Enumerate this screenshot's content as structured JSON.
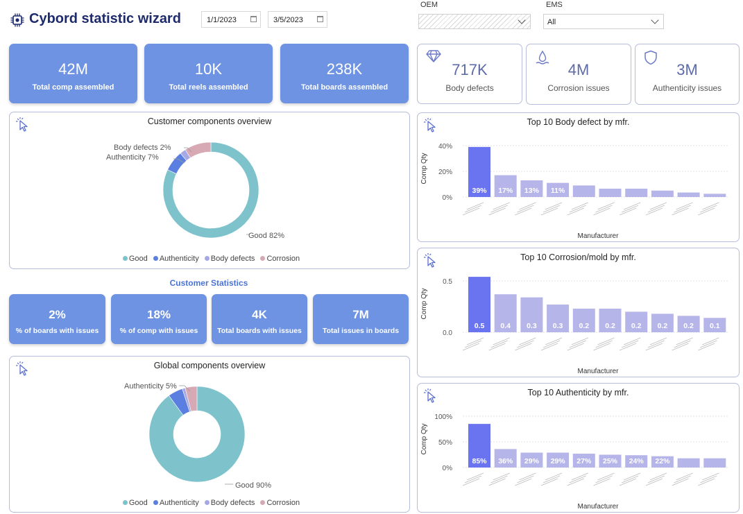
{
  "header": {
    "title": "Cybord statistic wizard",
    "icon": "chip-icon",
    "date_start": "1/1/2023",
    "date_end": "3/5/2023",
    "oem_label": "OEM",
    "oem_value": "",
    "ems_label": "EMS",
    "ems_value": "All"
  },
  "kpis_top": [
    {
      "value": "42M",
      "label": "Total comp assembled"
    },
    {
      "value": "10K",
      "label": "Total reels assembled"
    },
    {
      "value": "238K",
      "label": "Total boards assembled"
    }
  ],
  "kpis_issues": [
    {
      "value": "717K",
      "label": "Body defects",
      "icon": "diamond-icon"
    },
    {
      "value": "4M",
      "label": "Corrosion issues",
      "icon": "water-drop-icon"
    },
    {
      "value": "3M",
      "label": "Authenticity issues",
      "icon": "shield-icon"
    }
  ],
  "customer_overview": {
    "title": "Customer components overview",
    "labels": {
      "body": "Body defects 2%",
      "auth": "Authenticity 7%",
      "good": "Good 82%"
    }
  },
  "global_overview": {
    "title": "Global components overview",
    "labels": {
      "auth": "Authenticity 5%",
      "good": "Good 90%"
    }
  },
  "legend": [
    "Good",
    "Authenticity",
    "Body defects",
    "Corrosion"
  ],
  "colors": {
    "good": "#7ec3cc",
    "authenticity": "#5b7fe0",
    "body_defects": "#a6a8e6",
    "corrosion": "#d7a9b5",
    "bar_top": "#6b74f0",
    "bar_rest": "#b6b5ea",
    "tile": "#6e93e3"
  },
  "customer_statistics": {
    "title": "Customer Statistics",
    "tiles": [
      {
        "value": "2%",
        "label": "% of boards with issues"
      },
      {
        "value": "18%",
        "label": "% of comp with issues"
      },
      {
        "value": "4K",
        "label": "Total boards with issues"
      },
      {
        "value": "7M",
        "label": "Total issues in boards"
      }
    ]
  },
  "chart_data": [
    {
      "type": "pie",
      "title": "Customer components overview",
      "categories": [
        "Good",
        "Authenticity",
        "Body defects",
        "Corrosion"
      ],
      "values": [
        82,
        7,
        2,
        9
      ],
      "unit": "%"
    },
    {
      "type": "pie",
      "title": "Global components overview",
      "categories": [
        "Good",
        "Authenticity",
        "Body defects",
        "Corrosion"
      ],
      "values": [
        90,
        5,
        1,
        4
      ],
      "unit": "%"
    },
    {
      "type": "bar",
      "title": "Top 10 Body defect by mfr.",
      "xlabel": "Manufacturer",
      "ylabel": "Comp Qty",
      "yticks": [
        "0%",
        "20%",
        "40%"
      ],
      "ylim": [
        0,
        40
      ],
      "values": [
        39,
        17,
        13,
        11,
        9,
        6.5,
        6.5,
        5,
        3.5,
        2.5
      ],
      "data_labels": [
        "39%",
        "17%",
        "13%",
        "11%",
        "",
        "",
        "",
        "",
        "",
        ""
      ]
    },
    {
      "type": "bar",
      "title": "Top 10 Corrosion/mold by mfr.",
      "xlabel": "Manufacturer",
      "ylabel": "Comp Qty",
      "yticks": [
        "0.0",
        "0.5"
      ],
      "ylim": [
        0,
        0.5
      ],
      "values": [
        0.54,
        0.37,
        0.34,
        0.27,
        0.23,
        0.23,
        0.2,
        0.18,
        0.16,
        0.14
      ],
      "data_labels": [
        "0.5",
        "0.4",
        "0.3",
        "0.3",
        "0.2",
        "0.2",
        "0.2",
        "0.2",
        "0.2",
        "0.1"
      ]
    },
    {
      "type": "bar",
      "title": "Top 10 Authenticity by mfr.",
      "xlabel": "Manufacturer",
      "ylabel": "Comp Qty",
      "yticks": [
        "0%",
        "50%",
        "100%"
      ],
      "ylim": [
        0,
        100
      ],
      "values": [
        85,
        36,
        29,
        29,
        27,
        25,
        24,
        22,
        18,
        18
      ],
      "data_labels": [
        "85%",
        "36%",
        "29%",
        "29%",
        "27%",
        "25%",
        "24%",
        "22%",
        "",
        ""
      ]
    }
  ]
}
